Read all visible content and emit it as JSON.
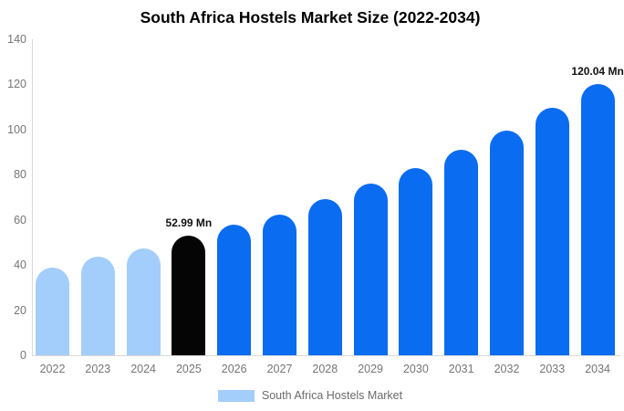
{
  "title": "South Africa Hostels Market Size (2022-2034)",
  "chart_data": {
    "type": "bar",
    "title": "South Africa Hostels Market Size (2022-2034)",
    "categories": [
      "2022",
      "2023",
      "2024",
      "2025",
      "2026",
      "2027",
      "2028",
      "2029",
      "2030",
      "2031",
      "2032",
      "2033",
      "2034"
    ],
    "values": [
      39,
      43.5,
      47.5,
      52.99,
      58,
      62.5,
      69,
      76,
      83,
      91,
      99.5,
      109.5,
      120.04
    ],
    "unit": "Mn",
    "xlabel": "",
    "ylabel": "",
    "ylim": [
      0,
      140
    ],
    "yticks": [
      0,
      20,
      40,
      60,
      80,
      100,
      120,
      140
    ],
    "grid": false,
    "legend_position": "bottom",
    "bar_colors": [
      "#a3cdfb",
      "#a3cdfb",
      "#a3cdfb",
      "#050505",
      "#0a6cf0",
      "#0a6cf0",
      "#0a6cf0",
      "#0a6cf0",
      "#0a6cf0",
      "#0a6cf0",
      "#0a6cf0",
      "#0a6cf0",
      "#0a6cf0"
    ],
    "annotations": [
      {
        "category": "2025",
        "label": "52.99 Mn"
      },
      {
        "category": "2034",
        "label": "120.04 Mn"
      }
    ]
  },
  "colors": {
    "history_bar": "#a3cdfb",
    "highlight_bar": "#050505",
    "forecast_bar": "#0a6cf0",
    "axis_line": "#d9d9d9",
    "tick_text": "#757575"
  },
  "legend": {
    "label": "South Africa Hostels Market",
    "swatch_color": "#a3cdfb"
  }
}
